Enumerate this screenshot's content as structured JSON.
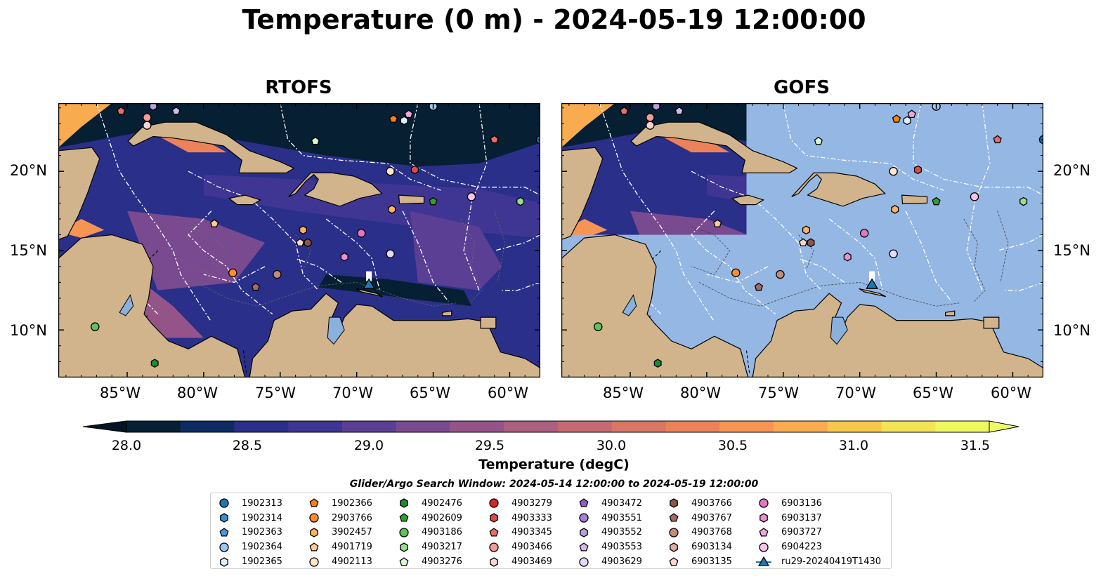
{
  "figure": {
    "title": "Temperature (0 m) - 2024-05-19 12:00:00"
  },
  "panels": [
    {
      "title": "RTOFS",
      "tint": false
    },
    {
      "title": "GOFS",
      "tint": true
    }
  ],
  "axes": {
    "lon_labels": [
      "85°W",
      "80°W",
      "75°W",
      "70°W",
      "65°W",
      "60°W"
    ],
    "lon_values": [
      -85,
      -80,
      -75,
      -70,
      -65,
      -60
    ],
    "lat_labels": [
      "20°N",
      "15°N",
      "10°N"
    ],
    "lat_values": [
      20,
      15,
      10
    ],
    "lon_range": [
      -89.5,
      -58.0
    ],
    "lat_range": [
      7.0,
      24.3
    ]
  },
  "colorbar": {
    "label": "Temperature (degC)",
    "min": 28.0,
    "max": 31.5,
    "step": 0.25,
    "extend": "both",
    "tick_labels": [
      "28.0",
      "28.5",
      "29.0",
      "29.5",
      "30.0",
      "30.5",
      "31.0",
      "31.5"
    ],
    "tick_values": [
      28.0,
      28.5,
      29.0,
      29.5,
      30.0,
      30.5,
      31.0,
      31.5
    ],
    "colors": [
      "#061f33",
      "#0f2b63",
      "#2a2f8a",
      "#3f3593",
      "#5b3f94",
      "#7a4a91",
      "#955489",
      "#ad5f80",
      "#c66a72",
      "#db7566",
      "#ec825a",
      "#f69553",
      "#f9ab4f",
      "#f7c84c",
      "#f3e456",
      "#eef85f"
    ],
    "under_color": "#041423",
    "over_color": "#eefc6a"
  },
  "map_colors": {
    "land": "#d2b48c",
    "ocean_mask": "#95b7e3",
    "lake": "#8ab0dc",
    "boundary": "#ffffff"
  },
  "legend": {
    "title": "Glider/Argo Search Window: 2024-05-14 12:00:00 to 2024-05-19 12:00:00",
    "columns": [
      [
        {
          "label": "1902313",
          "marker": "circle",
          "color": "#1f77b4"
        },
        {
          "label": "1902314",
          "marker": "hexagon",
          "color": "#3a8fd0"
        },
        {
          "label": "1902363",
          "marker": "pentagon",
          "color": "#4a98d8"
        },
        {
          "label": "1902364",
          "marker": "circle",
          "color": "#9ec9ef"
        },
        {
          "label": "1902365",
          "marker": "hexagon",
          "color": "#ddeefc"
        }
      ],
      [
        {
          "label": "1902366",
          "marker": "pentagon",
          "color": "#ff7f0e"
        },
        {
          "label": "2903766",
          "marker": "circle",
          "color": "#ff8c2a"
        },
        {
          "label": "3902457",
          "marker": "hexagon",
          "color": "#ffb061"
        },
        {
          "label": "4901719",
          "marker": "pentagon",
          "color": "#ffc994"
        },
        {
          "label": "4902113",
          "marker": "circle",
          "color": "#ffe6cc"
        }
      ],
      [
        {
          "label": "4902476",
          "marker": "hexagon",
          "color": "#1e8c2e"
        },
        {
          "label": "4902609",
          "marker": "pentagon",
          "color": "#2ca02c"
        },
        {
          "label": "4903186",
          "marker": "circle",
          "color": "#5cc45c"
        },
        {
          "label": "4903217",
          "marker": "hexagon",
          "color": "#98df8a"
        },
        {
          "label": "4903276",
          "marker": "pentagon",
          "color": "#d9f7d0"
        }
      ],
      [
        {
          "label": "4903279",
          "marker": "circle",
          "color": "#d62728"
        },
        {
          "label": "4903333",
          "marker": "hexagon",
          "color": "#e04a4a"
        },
        {
          "label": "4903345",
          "marker": "pentagon",
          "color": "#ea6b6b"
        },
        {
          "label": "4903466",
          "marker": "circle",
          "color": "#f39a9a"
        },
        {
          "label": "4903469",
          "marker": "hexagon",
          "color": "#fcd2d2"
        }
      ],
      [
        {
          "label": "4903472",
          "marker": "pentagon",
          "color": "#8f5cc9"
        },
        {
          "label": "4903551",
          "marker": "circle",
          "color": "#a680d4"
        },
        {
          "label": "4903552",
          "marker": "hexagon",
          "color": "#bb9de0"
        },
        {
          "label": "4903553",
          "marker": "pentagon",
          "color": "#d0bbec"
        },
        {
          "label": "4903629",
          "marker": "circle",
          "color": "#e6d9f7"
        }
      ],
      [
        {
          "label": "4903766",
          "marker": "hexagon",
          "color": "#8c564b"
        },
        {
          "label": "4903767",
          "marker": "pentagon",
          "color": "#a36b5e"
        },
        {
          "label": "4903768",
          "marker": "circle",
          "color": "#c48a7b"
        },
        {
          "label": "6903134",
          "marker": "hexagon",
          "color": "#e0ada0"
        },
        {
          "label": "6903135",
          "marker": "pentagon",
          "color": "#f7d6cc"
        }
      ],
      [
        {
          "label": "6903136",
          "marker": "circle",
          "color": "#e377c2"
        },
        {
          "label": "6903137",
          "marker": "hexagon",
          "color": "#ea8fcf"
        },
        {
          "label": "6903727",
          "marker": "pentagon",
          "color": "#f0a8dc"
        },
        {
          "label": "6904223",
          "marker": "circle",
          "color": "#f6c3e8"
        },
        {
          "label": "ru29-20240419T1430",
          "marker": "triangle-line",
          "color": "#1f77b4"
        }
      ]
    ]
  }
}
